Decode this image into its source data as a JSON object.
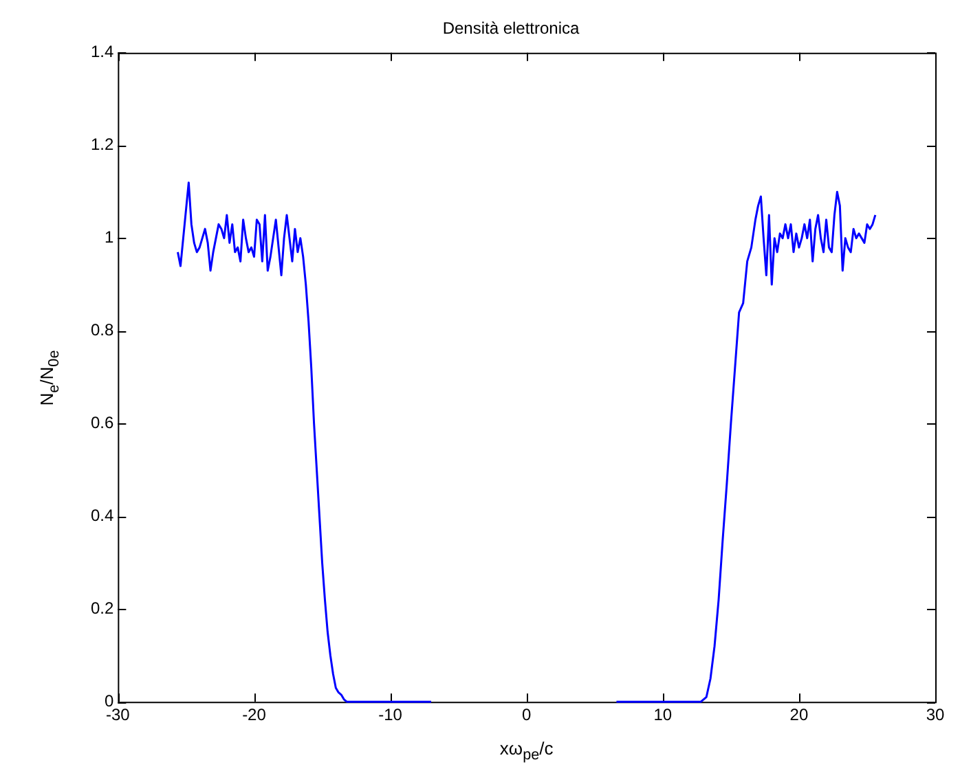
{
  "chart_data": {
    "type": "line",
    "title": "Densità elettronica",
    "xlabel": "xω$_{pe}$/c",
    "ylabel": "N$_{e}$/N$_{0e}$",
    "xlim": [
      -30,
      30
    ],
    "xticks": [
      -30,
      -20,
      -10,
      0,
      10,
      20,
      30
    ],
    "ylim": [
      0,
      1.4
    ],
    "yticks": [
      0,
      0.2,
      0.4,
      0.6,
      0.8,
      1,
      1.2,
      1.4
    ],
    "grid": false,
    "legend": false,
    "marker": "none",
    "line_style": "solid",
    "series": [
      {
        "color": "#0000ff",
        "x": [
          -25.6,
          -25.4,
          -25.2,
          -25.0,
          -24.8,
          -24.6,
          -24.4,
          -24.2,
          -24.0,
          -23.8,
          -23.6,
          -23.4,
          -23.2,
          -23.0,
          -22.8,
          -22.6,
          -22.4,
          -22.2,
          -22.0,
          -21.8,
          -21.6,
          -21.4,
          -21.2,
          -21.0,
          -20.8,
          -20.6,
          -20.4,
          -20.2,
          -20.0,
          -19.8,
          -19.6,
          -19.4,
          -19.2,
          -19.0,
          -18.8,
          -18.6,
          -18.4,
          -18.2,
          -18.0,
          -17.8,
          -17.6,
          -17.4,
          -17.2,
          -17.0,
          -16.8,
          -16.6,
          -16.4,
          -16.2,
          -16.0,
          -15.8,
          -15.6,
          -15.4,
          -15.2,
          -15.0,
          -14.8,
          -14.6,
          -14.4,
          -14.2,
          -14.0,
          -13.8,
          -13.6,
          -13.4,
          -13.2,
          -10,
          -7
        ],
        "values": [
          0.97,
          0.94,
          1.0,
          1.06,
          1.12,
          1.03,
          0.99,
          0.97,
          0.98,
          1.0,
          1.02,
          0.99,
          0.93,
          0.97,
          1.0,
          1.03,
          1.02,
          1.0,
          1.05,
          0.99,
          1.03,
          0.97,
          0.98,
          0.95,
          1.04,
          1.0,
          0.97,
          0.98,
          0.96,
          1.04,
          1.03,
          0.95,
          1.05,
          0.93,
          0.96,
          1.0,
          1.04,
          0.98,
          0.92,
          1.0,
          1.05,
          1.0,
          0.95,
          1.02,
          0.97,
          1.0,
          0.96,
          0.9,
          0.82,
          0.72,
          0.6,
          0.5,
          0.4,
          0.3,
          0.22,
          0.15,
          0.1,
          0.06,
          0.03,
          0.02,
          0.015,
          0.005,
          0,
          0,
          0
        ]
      },
      {
        "color": "#0000ff",
        "x": [
          6.6,
          10,
          12.8,
          13.2,
          13.5,
          13.8,
          14.1,
          14.4,
          14.7,
          15.0,
          15.3,
          15.6,
          15.9,
          16.2,
          16.5,
          16.8,
          17.0,
          17.2,
          17.4,
          17.6,
          17.8,
          18.0,
          18.2,
          18.4,
          18.6,
          18.8,
          19.0,
          19.2,
          19.4,
          19.6,
          19.8,
          20.0,
          20.2,
          20.4,
          20.6,
          20.8,
          21.0,
          21.2,
          21.4,
          21.6,
          21.8,
          22.0,
          22.2,
          22.4,
          22.6,
          22.8,
          23.0,
          23.2,
          23.4,
          23.6,
          23.8,
          24.0,
          24.2,
          24.4,
          24.6,
          24.8,
          25.0,
          25.2,
          25.4,
          25.6
        ],
        "values": [
          0,
          0,
          0,
          0.01,
          0.05,
          0.12,
          0.22,
          0.35,
          0.47,
          0.6,
          0.72,
          0.84,
          0.86,
          0.95,
          0.98,
          1.04,
          1.07,
          1.09,
          1.0,
          0.92,
          1.05,
          0.9,
          1.0,
          0.97,
          1.01,
          1.0,
          1.03,
          1.0,
          1.03,
          0.97,
          1.01,
          0.98,
          1.0,
          1.03,
          1.0,
          1.04,
          0.95,
          1.02,
          1.05,
          1.0,
          0.97,
          1.04,
          0.98,
          0.97,
          1.05,
          1.1,
          1.07,
          0.93,
          1.0,
          0.98,
          0.97,
          1.02,
          1.0,
          1.01,
          1.0,
          0.99,
          1.03,
          1.02,
          1.03,
          1.05
        ]
      }
    ]
  }
}
